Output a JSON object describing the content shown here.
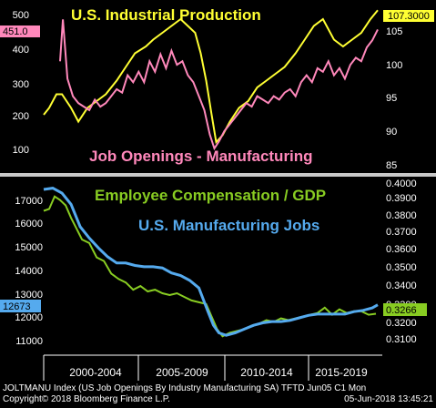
{
  "chart_data": [
    {
      "type": "line",
      "x_range": [
        2000.0,
        2018.45
      ],
      "left_axis": {
        "ylim": [
          50,
          520
        ],
        "ticks": [
          100,
          200,
          300,
          400,
          500
        ]
      },
      "right_axis": {
        "ylim": [
          84,
          108
        ],
        "ticks": [
          85,
          90,
          95,
          100,
          105
        ]
      },
      "series": [
        {
          "name": "U.S. Industrial Production",
          "axis": "right",
          "color": "#ffff33",
          "last_value_label": "107.3000",
          "x": [
            2000.0,
            2000.3,
            2000.7,
            2001.0,
            2001.5,
            2001.9,
            2002.4,
            2002.9,
            2003.4,
            2004.0,
            2004.5,
            2005.0,
            2005.6,
            2006.0,
            2006.5,
            2007.0,
            2007.5,
            2007.9,
            2008.3,
            2008.6,
            2008.9,
            2009.2,
            2009.45,
            2009.8,
            2010.2,
            2010.7,
            2011.2,
            2011.7,
            2012.2,
            2012.7,
            2013.2,
            2013.8,
            2014.3,
            2014.8,
            2015.3,
            2015.9,
            2016.4,
            2016.9,
            2017.4,
            2017.9,
            2018.3
          ],
          "y": [
            92,
            93,
            95,
            95,
            93,
            91,
            93,
            94,
            95,
            97,
            99,
            101,
            102,
            103,
            104,
            105,
            106,
            105,
            104,
            101,
            97,
            92,
            88,
            89,
            91,
            93,
            94,
            96,
            97,
            98,
            99,
            101,
            103,
            105,
            106,
            103,
            102,
            103,
            104,
            106,
            107.3
          ]
        },
        {
          "name": "Job Openings - Manufacturing",
          "axis": "left",
          "color": "#ff88bb",
          "last_value_label": "451.0",
          "x": [
            2000.9,
            2001.05,
            2001.3,
            2001.6,
            2001.9,
            2002.2,
            2002.5,
            2002.8,
            2003.1,
            2003.4,
            2003.7,
            2004.0,
            2004.3,
            2004.6,
            2004.9,
            2005.2,
            2005.5,
            2005.8,
            2006.1,
            2006.4,
            2006.7,
            2007.0,
            2007.3,
            2007.6,
            2007.9,
            2008.2,
            2008.5,
            2008.8,
            2009.1,
            2009.35,
            2009.6,
            2009.9,
            2010.2,
            2010.5,
            2010.8,
            2011.1,
            2011.4,
            2011.7,
            2012.0,
            2012.3,
            2012.6,
            2012.9,
            2013.2,
            2013.5,
            2013.8,
            2014.1,
            2014.4,
            2014.7,
            2015.0,
            2015.3,
            2015.6,
            2015.9,
            2016.2,
            2016.5,
            2016.8,
            2017.1,
            2017.4,
            2017.7,
            2018.0,
            2018.3
          ],
          "y": [
            360,
            480,
            310,
            260,
            240,
            230,
            220,
            250,
            230,
            240,
            260,
            280,
            270,
            320,
            300,
            330,
            300,
            360,
            330,
            380,
            340,
            390,
            350,
            360,
            320,
            300,
            260,
            220,
            150,
            110,
            130,
            160,
            180,
            200,
            220,
            240,
            230,
            260,
            250,
            240,
            260,
            250,
            270,
            280,
            260,
            300,
            320,
            300,
            340,
            330,
            360,
            320,
            340,
            310,
            350,
            370,
            360,
            400,
            420,
            451
          ]
        },
        {
          "name": "Employee Compensation / GDP",
          "axis": "right",
          "color": "#88cc22",
          "last_value_label": "0.3266",
          "x": [
            2000.0,
            2000.3,
            2000.6,
            2000.9,
            2001.2,
            2001.5,
            2001.8,
            2002.1,
            2002.5,
            2002.9,
            2003.3,
            2003.7,
            2004.1,
            2004.5,
            2004.9,
            2005.3,
            2005.7,
            2006.1,
            2006.5,
            2006.9,
            2007.3,
            2007.7,
            2008.1,
            2008.5,
            2008.9,
            2009.2,
            2009.5,
            2009.8,
            2010.2,
            2010.6,
            2011.0,
            2011.4,
            2011.8,
            2012.2,
            2012.6,
            2013.0,
            2013.4,
            2013.8,
            2014.2,
            2014.6,
            2015.0,
            2015.4,
            2015.8,
            2016.2,
            2016.6,
            2017.0,
            2017.4,
            2017.8,
            2018.2
          ],
          "y": [
            0.384,
            0.385,
            0.392,
            0.39,
            0.387,
            0.38,
            0.374,
            0.368,
            0.366,
            0.358,
            0.356,
            0.349,
            0.346,
            0.344,
            0.34,
            0.342,
            0.339,
            0.34,
            0.338,
            0.337,
            0.338,
            0.336,
            0.334,
            0.333,
            0.332,
            0.325,
            0.318,
            0.314,
            0.316,
            0.317,
            0.318,
            0.32,
            0.321,
            0.323,
            0.322,
            0.324,
            0.323,
            0.324,
            0.325,
            0.326,
            0.327,
            0.33,
            0.326,
            0.329,
            0.327,
            0.328,
            0.328,
            0.326,
            0.3266
          ]
        },
        {
          "name": "U.S. Manufacturing Jobs",
          "axis": "left",
          "color": "#55aaee",
          "last_value_label": "12673",
          "x": [
            2000.0,
            2000.5,
            2001.0,
            2001.5,
            2002.0,
            2002.5,
            2003.0,
            2003.5,
            2004.0,
            2004.5,
            2005.0,
            2005.5,
            2006.0,
            2006.5,
            2007.0,
            2007.5,
            2008.0,
            2008.5,
            2009.0,
            2009.3,
            2009.6,
            2010.0,
            2010.5,
            2011.0,
            2011.5,
            2012.0,
            2012.5,
            2013.0,
            2013.5,
            2014.0,
            2014.5,
            2015.0,
            2015.5,
            2016.0,
            2016.5,
            2017.0,
            2017.5,
            2018.0,
            2018.3
          ],
          "y": [
            17300,
            17350,
            17150,
            16700,
            15800,
            15350,
            14950,
            14600,
            14350,
            14350,
            14250,
            14200,
            14200,
            14150,
            13950,
            13850,
            13650,
            13350,
            12400,
            11850,
            11550,
            11450,
            11550,
            11700,
            11850,
            11950,
            12000,
            12000,
            12050,
            12150,
            12250,
            12300,
            12300,
            12300,
            12300,
            12400,
            12450,
            12550,
            12673
          ]
        }
      ],
      "annotations": [
        "U.S. Industrial Production",
        "Job Openings - Manufacturing"
      ]
    },
    {
      "type": "line",
      "x_range": [
        2000.0,
        2018.45
      ],
      "left_axis": {
        "ylim": [
          10800,
          17700
        ],
        "ticks": [
          11000,
          12000,
          13000,
          14000,
          15000,
          16000,
          17000
        ]
      },
      "right_axis": {
        "ylim": [
          0.3055,
          0.4015
        ],
        "ticks": [
          0.31,
          0.32,
          0.33,
          0.34,
          0.35,
          0.36,
          0.37,
          0.38,
          0.39,
          0.4
        ]
      },
      "annotations": [
        "Employee Compensation / GDP",
        "U.S. Manufacturing Jobs"
      ]
    }
  ],
  "labels": {
    "top_left_ticks": [
      "500",
      "400",
      "300",
      "200",
      "100"
    ],
    "top_right_ticks": [
      "105",
      "100",
      "95",
      "90",
      "85"
    ],
    "bottom_left_ticks": [
      "17000",
      "16000",
      "15000",
      "14000",
      "13000",
      "12000",
      "11000"
    ],
    "bottom_right_ticks": [
      "0.4000",
      "0.3900",
      "0.3800",
      "0.3700",
      "0.3600",
      "0.3500",
      "0.3400",
      "0.3300",
      "0.3200",
      "0.3100"
    ],
    "x_periods": [
      "2000-2004",
      "2005-2009",
      "2010-2014",
      "2015-2019"
    ]
  },
  "footer": {
    "line1": "JOLTMANU Index (US Job Openings By Industry Manufacturing SA) TFTD Jun05 C1  Mon",
    "line2_left": "Copyright© 2018 Bloomberg Finance L.P.",
    "line2_right": "05-Jun-2018 13:45:21"
  },
  "colors": {
    "background": "#000000",
    "divider": "#c8c8c8",
    "ip_title": "#ffff33",
    "jobs_openings_title": "#ff88bb",
    "comp_title": "#88cc22",
    "mfg_jobs_title": "#55aaee"
  }
}
